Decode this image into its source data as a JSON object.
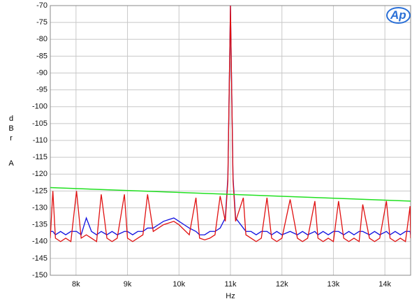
{
  "logo": "Ap",
  "chart_data": {
    "type": "line",
    "xlabel": "Hz",
    "ylabel": "dBr A",
    "xlim": [
      7500,
      14500
    ],
    "ylim": [
      -150,
      -70
    ],
    "grid": true,
    "xticks": [
      {
        "value": 8000,
        "label": "8k"
      },
      {
        "value": 9000,
        "label": "9k"
      },
      {
        "value": 10000,
        "label": "10k"
      },
      {
        "value": 11000,
        "label": "11k"
      },
      {
        "value": 12000,
        "label": "12k"
      },
      {
        "value": 13000,
        "label": "13k"
      },
      {
        "value": 14000,
        "label": "14k"
      }
    ],
    "yticks": [
      -150,
      -145,
      -140,
      -135,
      -130,
      -125,
      -120,
      -115,
      -110,
      -105,
      -100,
      -95,
      -90,
      -85,
      -80,
      -75,
      -70
    ],
    "x": [
      7500,
      7550,
      7600,
      7700,
      7800,
      7900,
      8010,
      8100,
      8200,
      8300,
      8400,
      8490,
      8600,
      8700,
      8800,
      8940,
      9000,
      9100,
      9200,
      9300,
      9390,
      9500,
      9600,
      9700,
      9800,
      9900,
      10000,
      10100,
      10200,
      10330,
      10400,
      10500,
      10600,
      10700,
      10800,
      10900,
      10950,
      11000,
      11050,
      11100,
      11250,
      11300,
      11400,
      11500,
      11600,
      11710,
      11800,
      11900,
      12000,
      12160,
      12300,
      12400,
      12500,
      12640,
      12700,
      12800,
      12900,
      13000,
      13100,
      13200,
      13300,
      13400,
      13500,
      13570,
      13700,
      13800,
      13900,
      14030,
      14100,
      14200,
      14300,
      14400,
      14490,
      14500
    ],
    "series": [
      {
        "color": "#1010e0",
        "values": [
          -137,
          -137,
          -138,
          -137,
          -138,
          -137,
          -137,
          -138,
          -133,
          -137,
          -138,
          -137,
          -138,
          -137,
          -138,
          -137,
          -137,
          -138,
          -137,
          -137,
          -136,
          -136,
          -135,
          -134,
          -133.5,
          -133,
          -134,
          -135,
          -136,
          -137,
          -138,
          -138,
          -137,
          -137,
          -136,
          -133,
          -121,
          -70,
          -121,
          -133,
          -136,
          -137,
          -137,
          -138,
          -137,
          -137,
          -138,
          -137,
          -138,
          -137,
          -138,
          -137,
          -138,
          -137,
          -138,
          -137,
          -138,
          -137,
          -137,
          -138,
          -137,
          -138,
          -137,
          -137,
          -138,
          -137,
          -138,
          -137,
          -138,
          -137,
          -138,
          -137,
          -137,
          -138
        ]
      },
      {
        "color": "#e01010",
        "values": [
          -139,
          -125,
          -139,
          -140,
          -139,
          -140,
          -125,
          -139,
          -138,
          -139,
          -140,
          -126,
          -139,
          -140,
          -139,
          -126,
          -139,
          -140,
          -139,
          -138,
          -126,
          -137,
          -136,
          -135,
          -134.5,
          -134,
          -135,
          -136.5,
          -138,
          -127,
          -139,
          -139.5,
          -139,
          -138,
          -126.5,
          -134,
          -122,
          -70,
          -122,
          -134,
          -127,
          -138,
          -139,
          -140,
          -139,
          -127,
          -139,
          -140,
          -139,
          -127.5,
          -139,
          -140,
          -139,
          -128,
          -139,
          -140,
          -139,
          -140,
          -128,
          -139,
          -140,
          -139,
          -140,
          -129,
          -139,
          -140,
          -139,
          -128,
          -139,
          -140,
          -139,
          -140,
          -129.5,
          -139
        ]
      },
      {
        "color": "#20e020",
        "x": [
          7500,
          14500
        ],
        "values": [
          -124,
          -128
        ]
      }
    ]
  }
}
